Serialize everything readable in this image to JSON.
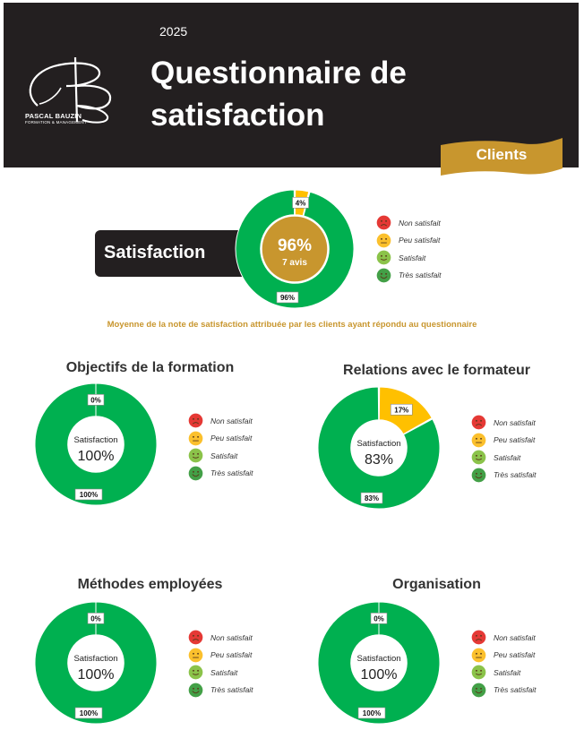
{
  "header": {
    "year": "2025",
    "title": "Questionnaire de satisfaction",
    "brand_name": "PASCAL BAUZIN",
    "brand_sub": "FORMATION & MANAGEMENT",
    "ribbon_label": "Clients"
  },
  "colors": {
    "header_bg": "#231f20",
    "accent_gold": "#c8962e",
    "green": "#00b050",
    "yellow": "#ffc000",
    "face_red": "#e53935",
    "face_yellow": "#fbc02d",
    "face_light_green": "#8bc34a",
    "face_dark_green": "#43a047"
  },
  "legend": [
    "Non satisfait",
    "Peu satisfait",
    "Satisfait",
    "Très satisfait"
  ],
  "legend_icons": [
    "sad-face-icon",
    "neutral-face-icon",
    "smile-face-icon",
    "happy-face-icon"
  ],
  "main": {
    "box_label": "Satisfaction",
    "center_value": "96%",
    "center_sub": "7 avis",
    "note": "Moyenne de la note de satisfaction attribuée par les clients ayant répondu au questionnaire"
  },
  "sections": [
    {
      "title": "Objectifs de la formation",
      "center_label": "Satisfaction",
      "center_value": "100%"
    },
    {
      "title": "Relations avec le formateur",
      "center_label": "Satisfaction",
      "center_value": "83%"
    },
    {
      "title": "Méthodes employées",
      "center_label": "Satisfaction",
      "center_value": "100%"
    },
    {
      "title": "Organisation",
      "center_label": "Satisfaction",
      "center_value": "100%"
    }
  ],
  "chart_data": [
    {
      "type": "pie",
      "name": "Satisfaction",
      "slices": [
        {
          "label": "4%",
          "value": 4,
          "color": "#ffc000"
        },
        {
          "label": "96%",
          "value": 96,
          "color": "#00b050"
        }
      ]
    },
    {
      "type": "pie",
      "name": "Objectifs de la formation",
      "slices": [
        {
          "label": "0%",
          "value": 0,
          "color": "#ffc000"
        },
        {
          "label": "100%",
          "value": 100,
          "color": "#00b050"
        }
      ]
    },
    {
      "type": "pie",
      "name": "Relations avec le formateur",
      "slices": [
        {
          "label": "17%",
          "value": 17,
          "color": "#ffc000"
        },
        {
          "label": "83%",
          "value": 83,
          "color": "#00b050"
        }
      ]
    },
    {
      "type": "pie",
      "name": "Méthodes employées",
      "slices": [
        {
          "label": "0%",
          "value": 0,
          "color": "#ffc000"
        },
        {
          "label": "100%",
          "value": 100,
          "color": "#00b050"
        }
      ]
    },
    {
      "type": "pie",
      "name": "Organisation",
      "slices": [
        {
          "label": "0%",
          "value": 0,
          "color": "#ffc000"
        },
        {
          "label": "100%",
          "value": 100,
          "color": "#00b050"
        }
      ]
    }
  ]
}
